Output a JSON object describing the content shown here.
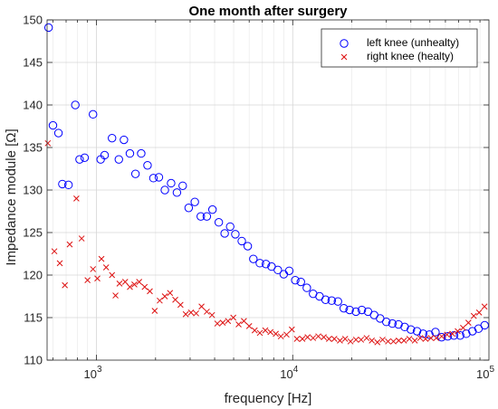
{
  "chart_data": {
    "type": "scatter",
    "title": "One month after surgery",
    "xlabel": "frequency [Hz]",
    "ylabel": "Impedance module [Ω]",
    "xscale": "log",
    "xlim": [
      560,
      100000
    ],
    "ylim": [
      110,
      150
    ],
    "grid": true,
    "legend_position": "top-right",
    "x_ticks": [
      {
        "value": 1000,
        "base": "10",
        "exp": "3"
      },
      {
        "value": 10000,
        "base": "10",
        "exp": "4"
      },
      {
        "value": 100000,
        "base": "10",
        "exp": "5"
      }
    ],
    "y_ticks": [
      110,
      115,
      120,
      125,
      130,
      135,
      140,
      145,
      150
    ],
    "series": [
      {
        "name": "left knee (unhealty)",
        "marker": "circle",
        "color": "#0000ff",
        "points": [
          [
            570,
            149.1
          ],
          [
            600,
            137.6
          ],
          [
            640,
            136.7
          ],
          [
            670,
            130.7
          ],
          [
            720,
            130.6
          ],
          [
            780,
            140.0
          ],
          [
            820,
            133.6
          ],
          [
            870,
            133.8
          ],
          [
            960,
            138.9
          ],
          [
            1050,
            133.6
          ],
          [
            1100,
            134.1
          ],
          [
            1200,
            136.1
          ],
          [
            1300,
            133.6
          ],
          [
            1380,
            135.9
          ],
          [
            1480,
            134.3
          ],
          [
            1580,
            131.9
          ],
          [
            1690,
            134.3
          ],
          [
            1820,
            132.9
          ],
          [
            1950,
            131.4
          ],
          [
            2080,
            131.5
          ],
          [
            2230,
            130.0
          ],
          [
            2400,
            130.8
          ],
          [
            2570,
            129.7
          ],
          [
            2750,
            130.5
          ],
          [
            2950,
            127.9
          ],
          [
            3170,
            128.6
          ],
          [
            3400,
            126.9
          ],
          [
            3650,
            126.9
          ],
          [
            3900,
            127.7
          ],
          [
            4200,
            126.2
          ],
          [
            4500,
            124.9
          ],
          [
            4800,
            125.7
          ],
          [
            5100,
            124.8
          ],
          [
            5500,
            124.0
          ],
          [
            5900,
            123.4
          ],
          [
            6300,
            121.9
          ],
          [
            6800,
            121.4
          ],
          [
            7300,
            121.3
          ],
          [
            7800,
            121.0
          ],
          [
            8400,
            120.6
          ],
          [
            9000,
            120.1
          ],
          [
            9600,
            120.5
          ],
          [
            10300,
            119.4
          ],
          [
            11000,
            119.2
          ],
          [
            11800,
            118.5
          ],
          [
            12700,
            117.8
          ],
          [
            13700,
            117.5
          ],
          [
            14700,
            117.1
          ],
          [
            15800,
            117.0
          ],
          [
            17000,
            116.9
          ],
          [
            18200,
            116.1
          ],
          [
            19500,
            115.9
          ],
          [
            21000,
            115.7
          ],
          [
            22500,
            115.9
          ],
          [
            24200,
            115.7
          ],
          [
            26000,
            115.3
          ],
          [
            27900,
            114.9
          ],
          [
            30000,
            114.5
          ],
          [
            32200,
            114.3
          ],
          [
            34600,
            114.2
          ],
          [
            37200,
            113.9
          ],
          [
            40000,
            113.6
          ],
          [
            43000,
            113.4
          ],
          [
            46200,
            113.1
          ],
          [
            49700,
            113.0
          ],
          [
            53400,
            113.3
          ],
          [
            57400,
            112.7
          ],
          [
            61700,
            112.8
          ],
          [
            66300,
            112.9
          ],
          [
            71300,
            112.9
          ],
          [
            76600,
            113.1
          ],
          [
            82400,
            113.4
          ],
          [
            88500,
            113.7
          ],
          [
            95100,
            114.1
          ]
        ]
      },
      {
        "name": "right knee (healty)",
        "marker": "x",
        "color": "#dd1111",
        "points": [
          [
            565,
            135.5
          ],
          [
            610,
            122.8
          ],
          [
            650,
            121.4
          ],
          [
            690,
            118.8
          ],
          [
            730,
            123.6
          ],
          [
            790,
            129.0
          ],
          [
            840,
            124.3
          ],
          [
            900,
            119.4
          ],
          [
            960,
            120.7
          ],
          [
            1010,
            119.6
          ],
          [
            1060,
            121.9
          ],
          [
            1120,
            120.9
          ],
          [
            1200,
            120.0
          ],
          [
            1250,
            117.6
          ],
          [
            1310,
            119.0
          ],
          [
            1400,
            119.2
          ],
          [
            1480,
            118.6
          ],
          [
            1560,
            118.9
          ],
          [
            1650,
            119.2
          ],
          [
            1760,
            118.6
          ],
          [
            1870,
            118.1
          ],
          [
            1980,
            115.8
          ],
          [
            2100,
            117.0
          ],
          [
            2230,
            117.5
          ],
          [
            2370,
            117.9
          ],
          [
            2520,
            117.1
          ],
          [
            2680,
            116.5
          ],
          [
            2850,
            115.4
          ],
          [
            3030,
            115.6
          ],
          [
            3220,
            115.5
          ],
          [
            3430,
            116.3
          ],
          [
            3650,
            115.7
          ],
          [
            3880,
            115.3
          ],
          [
            4130,
            114.3
          ],
          [
            4400,
            114.4
          ],
          [
            4680,
            114.6
          ],
          [
            4980,
            115.0
          ],
          [
            5300,
            114.2
          ],
          [
            5640,
            114.6
          ],
          [
            6000,
            114.0
          ],
          [
            6400,
            113.5
          ],
          [
            6800,
            113.2
          ],
          [
            7250,
            113.5
          ],
          [
            7700,
            113.3
          ],
          [
            8200,
            113.1
          ],
          [
            8700,
            112.8
          ],
          [
            9300,
            113.0
          ],
          [
            9900,
            113.6
          ],
          [
            10500,
            112.5
          ],
          [
            11200,
            112.5
          ],
          [
            11900,
            112.7
          ],
          [
            12700,
            112.6
          ],
          [
            13500,
            112.8
          ],
          [
            14400,
            112.7
          ],
          [
            15300,
            112.5
          ],
          [
            16300,
            112.5
          ],
          [
            17400,
            112.3
          ],
          [
            18500,
            112.5
          ],
          [
            19700,
            112.2
          ],
          [
            21000,
            112.4
          ],
          [
            22300,
            112.4
          ],
          [
            23800,
            112.6
          ],
          [
            25300,
            112.3
          ],
          [
            27000,
            112.1
          ],
          [
            28700,
            112.4
          ],
          [
            30600,
            112.2
          ],
          [
            32600,
            112.2
          ],
          [
            34700,
            112.3
          ],
          [
            36900,
            112.3
          ],
          [
            39300,
            112.5
          ],
          [
            41900,
            112.3
          ],
          [
            44600,
            112.6
          ],
          [
            47500,
            112.5
          ],
          [
            50600,
            112.6
          ],
          [
            53900,
            112.6
          ],
          [
            57400,
            112.8
          ],
          [
            61100,
            113.0
          ],
          [
            65100,
            113.1
          ],
          [
            69300,
            113.4
          ],
          [
            73800,
            113.8
          ],
          [
            78600,
            114.4
          ],
          [
            83700,
            115.2
          ],
          [
            89100,
            115.6
          ],
          [
            94900,
            116.3
          ]
        ]
      }
    ]
  }
}
